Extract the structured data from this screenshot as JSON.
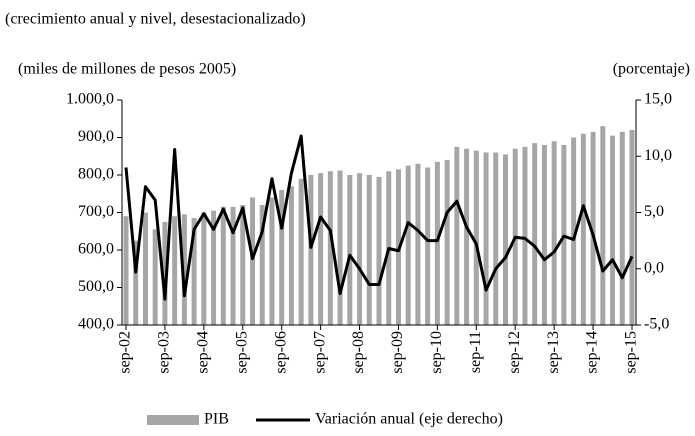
{
  "chart_data": {
    "type": "bar_line",
    "subtitle": "(crecimiento anual y nivel, desestacionalizado)",
    "y_label": "(miles de millones de pesos 2005)",
    "y2_label": "(porcentaje)",
    "categories": [
      "sep-02",
      null,
      null,
      null,
      "sep-03",
      null,
      null,
      null,
      "sep-04",
      null,
      null,
      null,
      "sep-05",
      null,
      null,
      null,
      "sep-06",
      null,
      null,
      null,
      "sep-07",
      null,
      null,
      null,
      "sep-08",
      null,
      null,
      null,
      "sep-09",
      null,
      null,
      null,
      "sep-10",
      null,
      null,
      null,
      "sep-11",
      null,
      null,
      null,
      "sep-12",
      null,
      null,
      null,
      "sep-13",
      null,
      null,
      null,
      "sep-14",
      null,
      null,
      null,
      "sep-15"
    ],
    "series": [
      {
        "name": "PIB",
        "color": "#a6a6a6",
        "kind": "bar",
        "axis": "y",
        "values": [
          690,
          625,
          700,
          655,
          675,
          690,
          695,
          685,
          700,
          705,
          715,
          715,
          720,
          740,
          720,
          740,
          760,
          770,
          790,
          800,
          805,
          810,
          812,
          800,
          805,
          800,
          795,
          810,
          815,
          825,
          830,
          820,
          835,
          840,
          875,
          870,
          865,
          860,
          860,
          855,
          870,
          875,
          885,
          880,
          890,
          880,
          900,
          910,
          915,
          930,
          905,
          915,
          920
        ]
      },
      {
        "name": "Variación anual (eje derecho)",
        "color": "#000000",
        "kind": "line",
        "axis": "y2",
        "values": [
          9.0,
          -0.3,
          7.3,
          6.1,
          -2.7,
          10.6,
          -2.4,
          3.5,
          4.9,
          3.5,
          5.3,
          3.2,
          5.4,
          0.9,
          3.3,
          8.0,
          3.6,
          8.5,
          11.8,
          1.9,
          4.6,
          3.4,
          -2.2,
          1.2,
          0,
          -1.4,
          -1.4,
          1.8,
          1.6,
          4.1,
          3.4,
          2.5,
          2.5,
          5.0,
          6.0,
          3.7,
          2.2,
          -1.9,
          0,
          1.0,
          2.8,
          2.7,
          2.0,
          0.8,
          1.5,
          2.9,
          2.6,
          5.6,
          3.0,
          -0.2,
          0.8,
          -0.8,
          1.1
        ]
      }
    ],
    "ylim": [
      400,
      1000
    ],
    "yticks": [
      {
        "value": 400,
        "label": "400,0"
      },
      {
        "value": 500,
        "label": "500,0"
      },
      {
        "value": 600,
        "label": "600,0"
      },
      {
        "value": 700,
        "label": "700,0"
      },
      {
        "value": 800,
        "label": "800,0"
      },
      {
        "value": 900,
        "label": "900,0"
      },
      {
        "value": 1000,
        "label": "1.000,0"
      }
    ],
    "y2lim": [
      -5,
      15
    ],
    "y2ticks": [
      {
        "value": -5,
        "label": "-5,0"
      },
      {
        "value": 0,
        "label": "0,0"
      },
      {
        "value": 5,
        "label": "5,0"
      },
      {
        "value": 10,
        "label": "10,0"
      },
      {
        "value": 15,
        "label": "15,0"
      }
    ],
    "legend": "bottom"
  }
}
